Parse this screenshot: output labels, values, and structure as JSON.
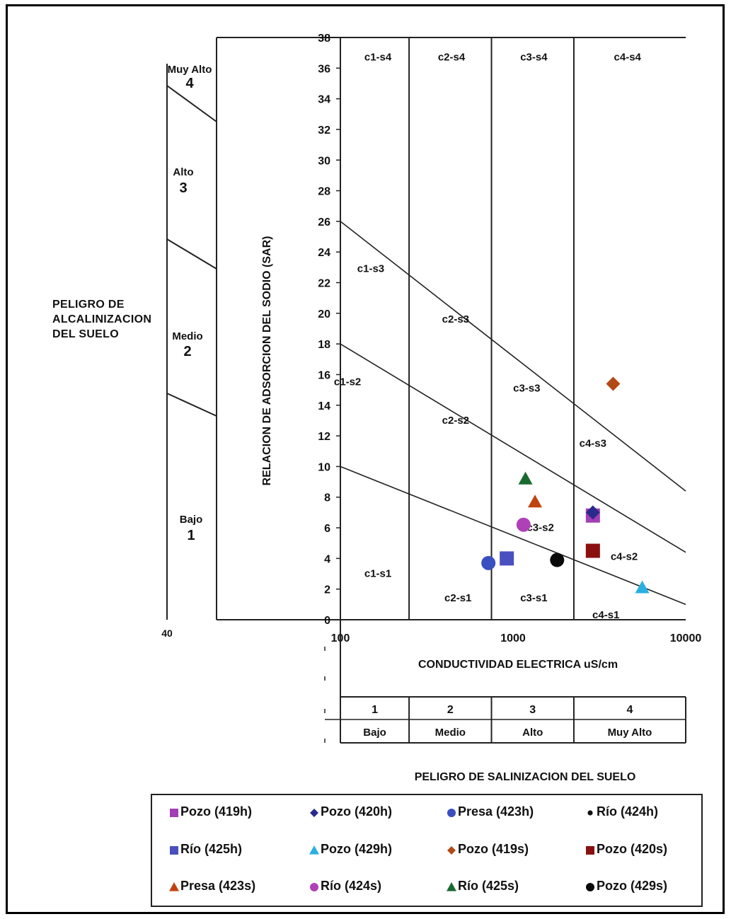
{
  "chart_data": {
    "type": "scatter",
    "xlabel": "CONDUCTIVIDAD ELECTRICA uS/cm",
    "ylabel": "RELACION DE ADSORCION DEL SODIO (SAR)",
    "x_scale": "log",
    "xlim": [
      100,
      10000
    ],
    "ylim": [
      0,
      38
    ],
    "x_ticks": [
      "100",
      "1000",
      "10000"
    ],
    "y_ticks": [
      "0",
      "2",
      "4",
      "6",
      "8",
      "10",
      "12",
      "14",
      "16",
      "18",
      "20",
      "22",
      "24",
      "26",
      "28",
      "30",
      "32",
      "34",
      "36",
      "38"
    ],
    "salinity_boundaries": [
      250,
      750,
      2250
    ],
    "sodium_hazard_lines": [
      {
        "ec": [
          100,
          10000
        ],
        "sar": [
          10,
          1
        ]
      },
      {
        "ec": [
          100,
          10000
        ],
        "sar": [
          18,
          4.4
        ]
      },
      {
        "ec": [
          100,
          10000
        ],
        "sar": [
          26,
          8.4
        ]
      }
    ],
    "zone_labels": [
      {
        "text": "c1-s4",
        "ec": 165,
        "sar": 36.5
      },
      {
        "text": "c2-s4",
        "ec": 440,
        "sar": 36.5
      },
      {
        "text": "c3-s4",
        "ec": 1320,
        "sar": 36.5
      },
      {
        "text": "c4-s4",
        "ec": 4600,
        "sar": 36.5
      },
      {
        "text": "c1-s3",
        "ec": 150,
        "sar": 22.7
      },
      {
        "text": "c2-s3",
        "ec": 465,
        "sar": 19.4
      },
      {
        "text": "c3-s3",
        "ec": 1200,
        "sar": 14.9
      },
      {
        "text": "c4-s3",
        "ec": 2900,
        "sar": 11.3
      },
      {
        "text": "c1-s2",
        "ec": 110,
        "sar": 15.3
      },
      {
        "text": "c2-s2",
        "ec": 465,
        "sar": 12.8
      },
      {
        "text": "c3-s2",
        "ec": 1440,
        "sar": 5.8
      },
      {
        "text": "c4-s2",
        "ec": 4400,
        "sar": 3.9
      },
      {
        "text": "c1-s1",
        "ec": 165,
        "sar": 2.8
      },
      {
        "text": "c2-s1",
        "ec": 480,
        "sar": 1.2
      },
      {
        "text": "c3-s1",
        "ec": 1320,
        "sar": 1.2
      },
      {
        "text": "c4-s1",
        "ec": 3450,
        "sar": 0.1
      }
    ],
    "series": [
      {
        "name": "Pozo (419h)",
        "marker": "square",
        "color": "#a23fb4",
        "points": [
          [
            2900,
            6.8
          ]
        ]
      },
      {
        "name": "Pozo (420h)",
        "marker": "diamond",
        "color": "#2a2a8c",
        "points": [
          [
            2900,
            7.0
          ]
        ]
      },
      {
        "name": "Presa (423h)",
        "marker": "circle",
        "color": "#3a4fc0",
        "points": [
          [
            720,
            3.7
          ]
        ]
      },
      {
        "name": "Río (424h)",
        "marker": "circle-small",
        "color": "#111111",
        "points": []
      },
      {
        "name": "Río (425h)",
        "marker": "square",
        "color": "#4a4fc0",
        "points": [
          [
            920,
            4.0
          ]
        ]
      },
      {
        "name": "Pozo (429h)",
        "marker": "triangle",
        "color": "#2ab0e0",
        "points": [
          [
            5600,
            2.1
          ]
        ]
      },
      {
        "name": "Pozo (419s)",
        "marker": "diamond",
        "color": "#b34a16",
        "points": [
          [
            3800,
            15.4
          ]
        ]
      },
      {
        "name": "Pozo (420s)",
        "marker": "square",
        "color": "#8a1010",
        "points": [
          [
            2900,
            4.5
          ]
        ]
      },
      {
        "name": "Presa (423s)",
        "marker": "triangle",
        "color": "#c0430f",
        "points": [
          [
            1340,
            7.7
          ]
        ]
      },
      {
        "name": "Río (424s)",
        "marker": "circle",
        "color": "#b040b8",
        "points": [
          [
            1150,
            6.2
          ]
        ]
      },
      {
        "name": "Río (425s)",
        "marker": "triangle",
        "color": "#1a6a30",
        "points": [
          [
            1180,
            9.2
          ]
        ]
      },
      {
        "name": "Pozo (429s)",
        "marker": "circle",
        "color": "#0a0a0a",
        "points": [
          [
            1800,
            3.9
          ]
        ]
      }
    ]
  },
  "alkalinization_panel": {
    "title": "PELIGRO DE\nALCALINIZACION\nDEL SUELO",
    "classes": [
      {
        "name": "Muy Alto",
        "num": "4"
      },
      {
        "name": "Alto",
        "num": "3"
      },
      {
        "name": "Medio",
        "num": "2"
      },
      {
        "name": "Bajo",
        "num": "1"
      }
    ],
    "stub_tick": "40"
  },
  "salinization_panel": {
    "title": "PELIGRO DE SALINIZACION  DEL SUELO",
    "classes": [
      {
        "num": "1",
        "name": "Bajo"
      },
      {
        "num": "2",
        "name": "Medio"
      },
      {
        "num": "3",
        "name": "Alto"
      },
      {
        "num": "4",
        "name": "Muy Alto"
      }
    ]
  },
  "legend": {
    "rows": [
      [
        "Pozo (419h)",
        "Pozo (420h)",
        "Presa (423h)",
        "Río (424h)"
      ],
      [
        "Río (425h)",
        "Pozo (429h)",
        "Pozo (419s)",
        "Pozo (420s)"
      ],
      [
        "Presa (423s)",
        "Río (424s)",
        "Río (425s)",
        "Pozo (429s)"
      ]
    ]
  }
}
